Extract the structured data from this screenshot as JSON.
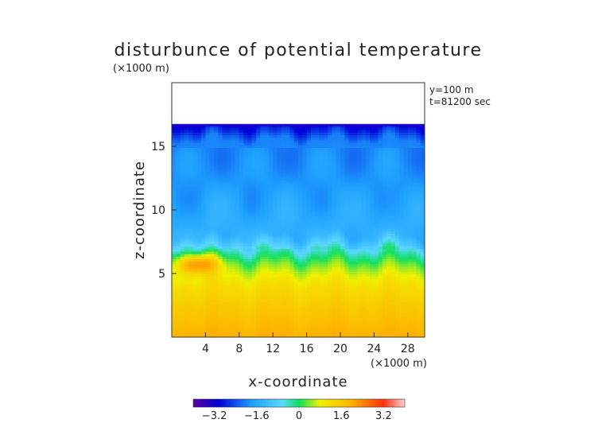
{
  "chart_data": {
    "type": "heatmap",
    "title": "disturbunce of potential temperature",
    "xlabel": "x-coordinate",
    "ylabel": "z-coordinate",
    "x_unit": "(×1000 m)",
    "y_unit": "(×1000 m)",
    "annotations": [
      "y=100 m",
      "t=81200 sec"
    ],
    "xlim": [
      0,
      30
    ],
    "ylim": [
      0,
      20
    ],
    "x_ticks": [
      4,
      8,
      12,
      16,
      20,
      24,
      28
    ],
    "y_ticks": [
      5,
      10,
      15
    ],
    "colorbar": {
      "range": [
        -4,
        4
      ],
      "ticks": [
        "−3.2",
        "−1.6",
        "0",
        "1.6",
        "3.2"
      ],
      "tick_values": [
        -3.2,
        -1.6,
        0,
        1.6,
        3.2
      ]
    },
    "field_summary": {
      "domain_top_km": 16.7,
      "min_value": -3.5,
      "max_value": 2.8,
      "levels": [
        {
          "z": 16.6,
          "value": -3.0
        },
        {
          "z": 15.5,
          "value": -2.0
        },
        {
          "z": 12.0,
          "value": -1.8
        },
        {
          "z": 8.0,
          "value": -1.4
        },
        {
          "z": 6.5,
          "value": -0.2
        },
        {
          "z": 5.5,
          "value": 0.5
        },
        {
          "z": 4.0,
          "value": 1.2
        },
        {
          "z": 2.0,
          "value": 1.6
        },
        {
          "z": 0.0,
          "value": 2.0
        }
      ],
      "warm_anomaly": {
        "x": 3,
        "z": 5.8,
        "value": 2.6
      }
    }
  }
}
